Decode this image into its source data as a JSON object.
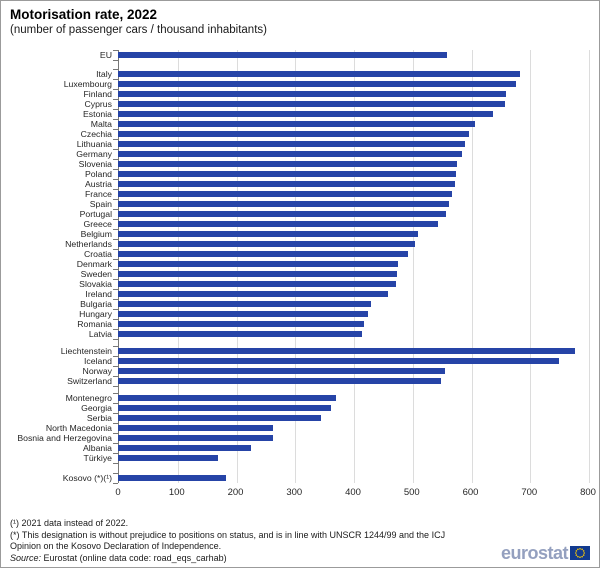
{
  "title": "Motorisation rate, 2022",
  "subtitle": "(number  of passenger cars / thousand inhabitants)",
  "chart_data": {
    "type": "bar",
    "orientation": "horizontal",
    "title": "Motorisation rate, 2022",
    "subtitle": "(number of passenger cars / thousand inhabitants)",
    "xlabel": "",
    "ylabel": "",
    "xlim": [
      0,
      800
    ],
    "x_ticks": [
      0,
      100,
      200,
      300,
      400,
      500,
      600,
      700,
      800
    ],
    "grid": true,
    "bar_color": "#2644A7",
    "gridline_color": "#dcdcdc",
    "groups": [
      {
        "name": "eu-aggregate",
        "rows": [
          {
            "label": "EU",
            "value": 560
          }
        ]
      },
      {
        "name": "eu-members",
        "rows": [
          {
            "label": "Italy",
            "value": 684
          },
          {
            "label": "Luxembourg",
            "value": 678
          },
          {
            "label": "Finland",
            "value": 661
          },
          {
            "label": "Cyprus",
            "value": 658
          },
          {
            "label": "Estonia",
            "value": 638
          },
          {
            "label": "Malta",
            "value": 607
          },
          {
            "label": "Czechia",
            "value": 598
          },
          {
            "label": "Lithuania",
            "value": 590
          },
          {
            "label": "Germany",
            "value": 586
          },
          {
            "label": "Slovenia",
            "value": 577
          },
          {
            "label": "Poland",
            "value": 575
          },
          {
            "label": "Austria",
            "value": 573
          },
          {
            "label": "France",
            "value": 568
          },
          {
            "label": "Spain",
            "value": 563
          },
          {
            "label": "Portugal",
            "value": 558
          },
          {
            "label": "Greece",
            "value": 545
          },
          {
            "label": "Belgium",
            "value": 511
          },
          {
            "label": "Netherlands",
            "value": 506
          },
          {
            "label": "Croatia",
            "value": 493
          },
          {
            "label": "Denmark",
            "value": 477
          },
          {
            "label": "Sweden",
            "value": 475
          },
          {
            "label": "Slovakia",
            "value": 474
          },
          {
            "label": "Ireland",
            "value": 459
          },
          {
            "label": "Bulgaria",
            "value": 430
          },
          {
            "label": "Hungary",
            "value": 426
          },
          {
            "label": "Romania",
            "value": 418
          },
          {
            "label": "Latvia",
            "value": 415
          }
        ]
      },
      {
        "name": "efta",
        "rows": [
          {
            "label": "Liechtenstein",
            "value": 778
          },
          {
            "label": "Iceland",
            "value": 750
          },
          {
            "label": "Norway",
            "value": 556
          },
          {
            "label": "Switzerland",
            "value": 549
          }
        ]
      },
      {
        "name": "candidates",
        "rows": [
          {
            "label": "Montenegro",
            "value": 371
          },
          {
            "label": "Georgia",
            "value": 362
          },
          {
            "label": "Serbia",
            "value": 346
          },
          {
            "label": "North Macedonia",
            "value": 264
          },
          {
            "label": "Bosnia and Herzegovina",
            "value": 263
          },
          {
            "label": "Albania",
            "value": 227
          },
          {
            "label": "Türkiye",
            "value": 170
          }
        ]
      },
      {
        "name": "kosovo",
        "rows": [
          {
            "label": "Kosovo (*)(¹)",
            "value": 183
          }
        ]
      }
    ]
  },
  "footnotes": {
    "line1": "(¹) 2021 data instead of 2022.",
    "line2": "(*) This designation is without prejudice to positions on status,  and is in line with UNSCR 1244/99 and the ICJ",
    "line3": "Opinion on the Kosovo Declaration of Independence.",
    "source_label": "Source:",
    "source_text": "Eurostat (online data code: road_eqs_carhab)"
  },
  "logo": {
    "text": "eurostat",
    "flag_bg": "#123a8e",
    "flag_star_color": "#ffcc00",
    "text_color": "#94a0bf"
  }
}
